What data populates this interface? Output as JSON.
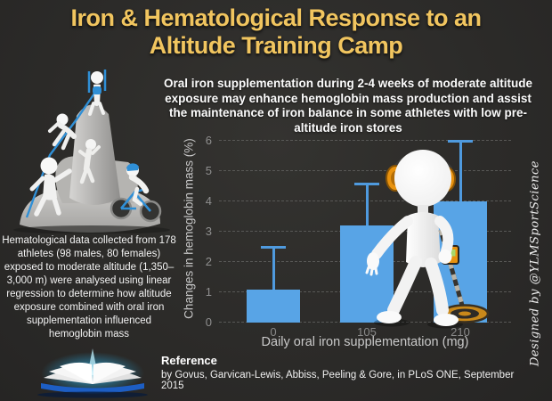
{
  "title": {
    "line1": "Iron & Hematological Response to an",
    "line2": "Altitude Training Camp"
  },
  "subtitle": "Oral iron supplementation during 2-4 weeks of moderate altitude exposure may enhance hemoglobin mass production and assist the maintenance of iron balance in some athletes with low pre-altitude iron stores",
  "left_note": "Hematological data collected from 178 athletes (98 males, 80 females) exposed to moderate altitude (1,350–3,000 m) were analysed using linear regression to determine how altitude exposure combined with oral iron supplementation influenced hemoglobin mass",
  "chart_data": {
    "type": "bar",
    "categories": [
      "0",
      "105",
      "210"
    ],
    "values": [
      1.1,
      3.2,
      4.0
    ],
    "error_upper": [
      2.5,
      4.6,
      6.0
    ],
    "title": "",
    "xlabel": "Daily oral iron supplementation (mg)",
    "ylabel": "Changes in hemoglobin mass (%)",
    "ylim": [
      0,
      6
    ],
    "yticks": [
      0,
      1,
      2,
      3,
      4,
      5,
      6
    ],
    "grid": "horizontal-dashed",
    "legend": "none",
    "bar_color": "#58a4e6"
  },
  "reference": {
    "heading": "Reference",
    "citation": "by Govus, Garvican-Lewis, Abbiss, Peeling & Gore, in PLoS ONE, September 2015"
  },
  "credit": "Designed by @YLMSportScience",
  "colors": {
    "background": "#2c2b29",
    "title_gold": "#f1c55f",
    "bar_blue": "#58a4e6",
    "text_white": "#fcfcfc",
    "axis_gray": "#8f8f8f",
    "headphone_orange": "#e8920e"
  },
  "illustrations": {
    "mountain_climbers": "teamwork figures climbing a rock with cyclist",
    "detector_figure": "white figure with orange headphones holding a metal detector",
    "book": "glowing open book"
  }
}
